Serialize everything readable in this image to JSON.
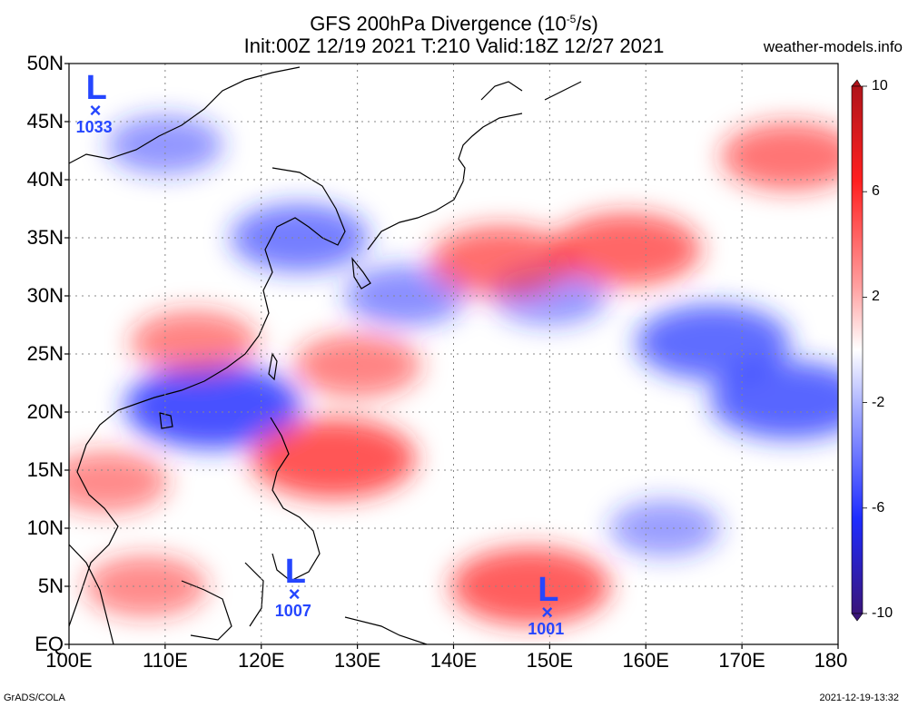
{
  "title": {
    "line1_prefix": "GFS 200hPa Divergence (10",
    "line1_exp": "-5",
    "line1_suffix": "/s)",
    "line2": "Init:00Z 12/19 2021 T:210 Valid:18Z 12/27 2021"
  },
  "site": "weather-models.info",
  "footer": {
    "left": "GrADS/COLA",
    "right": "2021-12-19-13:32"
  },
  "map": {
    "lon_range": [
      100,
      180
    ],
    "lat_range": [
      0,
      50
    ],
    "lon_labels": [
      "100E",
      "110E",
      "120E",
      "130E",
      "140E",
      "150E",
      "160E",
      "170E",
      "180"
    ],
    "lat_labels": [
      "EQ",
      "5N",
      "10N",
      "15N",
      "20N",
      "25N",
      "30N",
      "35N",
      "40N",
      "45N",
      "50N"
    ],
    "grid": "dotted"
  },
  "colorbar": {
    "labels": [
      "10",
      "6",
      "2",
      "-2",
      "-6",
      "-10"
    ],
    "range": [
      -10,
      10
    ],
    "colors": {
      "max": "#b0151b",
      "high": "#ff2020",
      "low": "#1e2cff",
      "min": "#3a157a",
      "zero": "#ffffff"
    }
  },
  "systems": [
    {
      "type": "L",
      "pressure": "1033",
      "lon": 102.8,
      "lat": 45.9
    },
    {
      "type": "L",
      "pressure": "1007",
      "lon": 123.5,
      "lat": 4.3
    },
    {
      "type": "L",
      "pressure": "1001",
      "lon": 149.8,
      "lat": 2.7
    }
  ],
  "field_features": [
    {
      "sign": "neg",
      "strength": 0.95,
      "lon": 115,
      "lat": 20.5
    },
    {
      "sign": "neg",
      "strength": 0.8,
      "lon": 175,
      "lat": 21
    },
    {
      "sign": "neg",
      "strength": 0.75,
      "lon": 167,
      "lat": 26
    },
    {
      "sign": "neg",
      "strength": 0.6,
      "lon": 124,
      "lat": 35
    },
    {
      "sign": "neg",
      "strength": 0.45,
      "lon": 135,
      "lat": 30
    },
    {
      "sign": "neg",
      "strength": 0.4,
      "lon": 150,
      "lat": 30
    },
    {
      "sign": "neg",
      "strength": 0.4,
      "lon": 110,
      "lat": 43
    },
    {
      "sign": "neg",
      "strength": 0.35,
      "lon": 162,
      "lat": 10
    },
    {
      "sign": "pos",
      "strength": 0.85,
      "lon": 127.5,
      "lat": 16
    },
    {
      "sign": "pos",
      "strength": 0.8,
      "lon": 148,
      "lat": 5
    },
    {
      "sign": "pos",
      "strength": 0.7,
      "lon": 158,
      "lat": 34
    },
    {
      "sign": "pos",
      "strength": 0.65,
      "lon": 145,
      "lat": 33
    },
    {
      "sign": "pos",
      "strength": 0.6,
      "lon": 175,
      "lat": 42
    },
    {
      "sign": "pos",
      "strength": 0.5,
      "lon": 113,
      "lat": 26
    },
    {
      "sign": "pos",
      "strength": 0.5,
      "lon": 130,
      "lat": 24
    },
    {
      "sign": "pos",
      "strength": 0.45,
      "lon": 104,
      "lat": 14
    },
    {
      "sign": "pos",
      "strength": 0.45,
      "lon": 108,
      "lat": 5
    }
  ]
}
